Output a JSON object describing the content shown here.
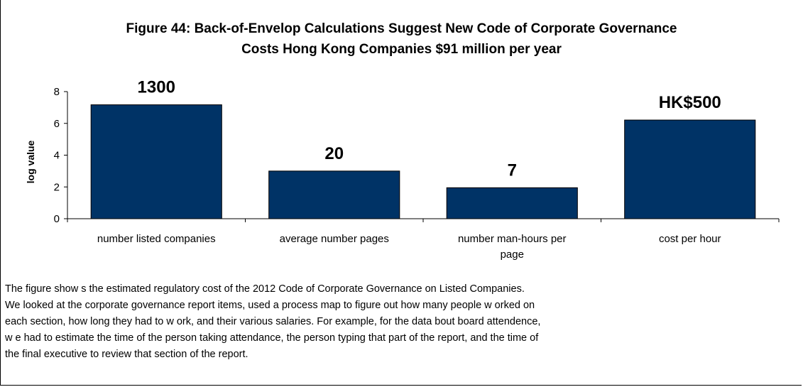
{
  "chart_data": {
    "type": "bar",
    "title": "Figure 44: Back-of-Envelop Calculations Suggest New Code of Corporate Governance Costs Hong Kong Companies $91 million per year",
    "title_lines": [
      "Figure 44: Back-of-Envelop Calculations Suggest New Code of Corporate Governance",
      "Costs Hong Kong Companies $91 million per year"
    ],
    "ylabel": "log value",
    "xlabel": "",
    "ylim": [
      0,
      8
    ],
    "yticks": [
      0,
      2,
      4,
      6,
      8
    ],
    "grid": false,
    "legend": "none",
    "categories": [
      [
        "number listed companies"
      ],
      [
        "average number pages"
      ],
      [
        "number man-hours per",
        "page"
      ],
      [
        "cost per hour"
      ]
    ],
    "values": [
      7.17,
      3.0,
      1.95,
      6.21
    ],
    "data_labels": [
      "1300",
      "20",
      "7",
      "HK$500"
    ],
    "bar_color": "#003366"
  },
  "caption": [
    "The figure show s the estimated regulatory cost of the 2012 Code of Corporate Governance on Listed Companies.",
    "We looked at the corporate governance report items, used a process map to figure out how many people w orked on",
    "each section, how long they had to w ork, and their various salaries. For example, for the data bout board attendence,",
    "w e had to estimate the time of the person taking attendance, the person typing that part of the report, and the time of",
    "the final executive to review that section of the report."
  ]
}
